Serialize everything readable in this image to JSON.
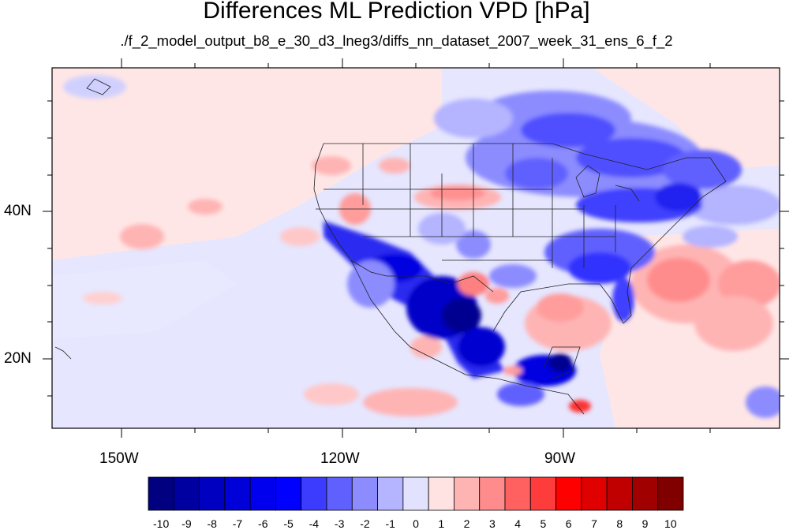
{
  "title": "Differences ML Prediction VPD [hPa]",
  "subtitle": "./f_2_model_output_b8_e_30_d3_lneg3/diffs_nn_dataset_2007_week_31_ens_6_f_2",
  "map": {
    "lat_labels": [
      "40N",
      "20N"
    ],
    "lon_labels": [
      "150W",
      "120W",
      "90W"
    ]
  },
  "colorbar": {
    "labels": [
      "-10",
      "-9",
      "-8",
      "-7",
      "-6",
      "-5",
      "-4",
      "-3",
      "-2",
      "-1",
      "0",
      "1",
      "2",
      "3",
      "4",
      "5",
      "6",
      "7",
      "8",
      "9",
      "10"
    ],
    "colors": [
      "#000080",
      "#0000a0",
      "#0000c0",
      "#0000d8",
      "#0000ee",
      "#0000ff",
      "#3c3cff",
      "#6060ff",
      "#8c8cff",
      "#b4b4ff",
      "#e2e2ff",
      "#ffe2e2",
      "#ffb4b4",
      "#ff8c8c",
      "#ff6060",
      "#ff3c3c",
      "#ff0000",
      "#e00000",
      "#c00000",
      "#a00000",
      "#800000"
    ]
  }
}
